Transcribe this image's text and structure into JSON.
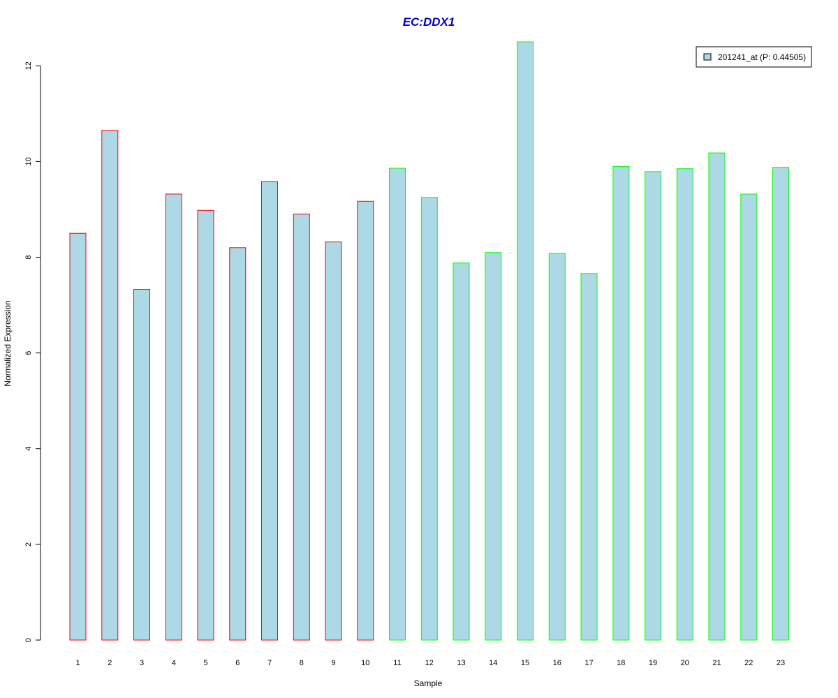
{
  "chart_data": {
    "type": "bar",
    "title": "EC:DDX1",
    "xlabel": "Sample",
    "ylabel": "Normalized Expression",
    "categories": [
      "1",
      "2",
      "3",
      "4",
      "5",
      "6",
      "7",
      "8",
      "9",
      "10",
      "11",
      "12",
      "13",
      "14",
      "15",
      "16",
      "17",
      "18",
      "19",
      "20",
      "21",
      "22",
      "23"
    ],
    "values": [
      8.5,
      10.65,
      7.33,
      9.32,
      8.98,
      8.2,
      9.58,
      8.9,
      8.32,
      9.17,
      9.86,
      9.25,
      7.88,
      8.1,
      12.5,
      8.08,
      7.66,
      9.9,
      9.79,
      9.85,
      10.18,
      9.32,
      9.88
    ],
    "groups": [
      {
        "samples": [
          1,
          10
        ],
        "border_color": "#ff0000"
      },
      {
        "samples": [
          11,
          23
        ],
        "border_color": "#00ff00"
      }
    ],
    "yticks": [
      0,
      2,
      4,
      6,
      8,
      10,
      12
    ],
    "ylim": [
      0,
      12.5
    ],
    "grid": false,
    "legend": {
      "position": "top-right",
      "entries": [
        {
          "label": "201241_at (P: 0.44505)",
          "color": "#add8e6"
        }
      ]
    },
    "colors": {
      "bar_fill": "#add8e6",
      "title": "#0000cd",
      "axis": "#000000"
    }
  }
}
